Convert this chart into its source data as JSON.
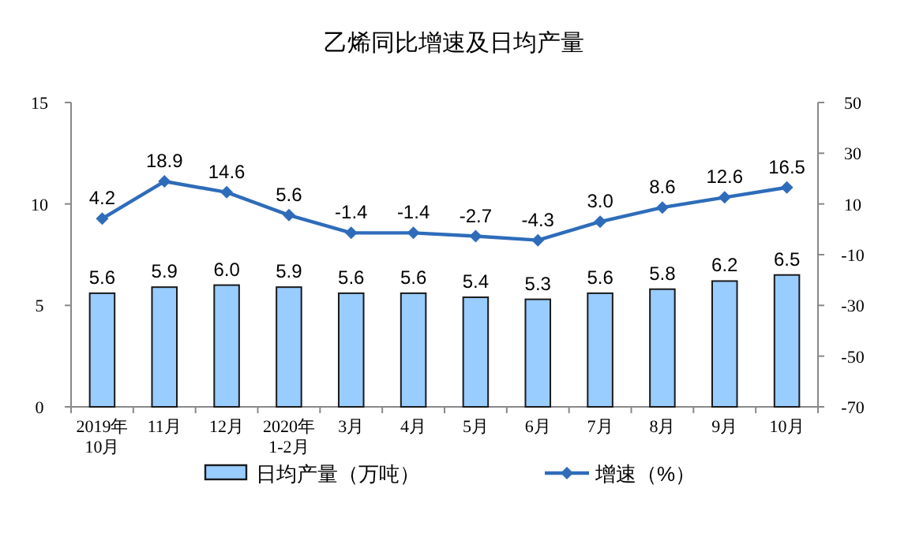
{
  "chart_data": {
    "type": "bar",
    "title": "乙烯同比增速及日均产量",
    "categories": [
      "2019年\n10月",
      "11月",
      "12月",
      "2020年\n1-2月",
      "3月",
      "4月",
      "5月",
      "6月",
      "7月",
      "8月",
      "9月",
      "10月"
    ],
    "series": [
      {
        "name": "日均产量（万吨）",
        "color": "#99ccff",
        "values": [
          5.6,
          5.9,
          6.0,
          5.9,
          5.6,
          5.6,
          5.4,
          5.3,
          5.6,
          5.8,
          6.2,
          6.5
        ],
        "value_labels": [
          "5.6",
          "5.9",
          "6.0",
          "5.9",
          "5.6",
          "5.6",
          "5.4",
          "5.3",
          "5.6",
          "5.8",
          "6.2",
          "6.5"
        ]
      },
      {
        "name": "增速（%）",
        "type": "line",
        "axis": "y2",
        "color": "#2e6cba",
        "marker": "diamond",
        "values": [
          4.2,
          18.9,
          14.6,
          5.6,
          -1.4,
          -1.4,
          -2.7,
          -4.3,
          3.0,
          8.6,
          12.6,
          16.5
        ],
        "value_labels": [
          "4.2",
          "18.9",
          "14.6",
          "5.6",
          "-1.4",
          "-1.4",
          "-2.7",
          "-4.3",
          "3.0",
          "8.6",
          "12.6",
          "16.5"
        ]
      }
    ],
    "ylim": [
      0,
      15
    ],
    "yticks": [
      0,
      5,
      10,
      15
    ],
    "y2lim": [
      -70,
      50
    ],
    "y2ticks": [
      -70,
      -50,
      -30,
      -10,
      10,
      30,
      50
    ],
    "grid": false,
    "legend": "bottom"
  }
}
